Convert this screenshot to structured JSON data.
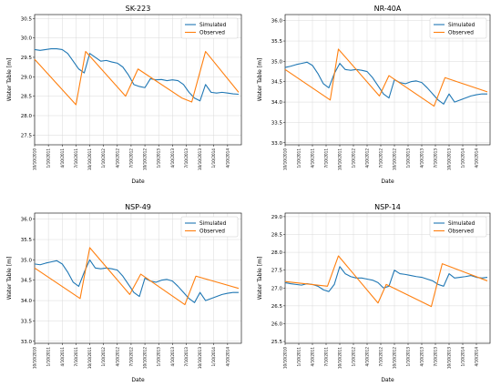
{
  "chart_data": [
    {
      "type": "line",
      "title": "SK-223",
      "xlabel": "Date",
      "ylabel": "Water Table [m]",
      "ylim": [
        27.25,
        30.6
      ],
      "yticks": [
        "27.5",
        "28.0",
        "28.5",
        "29.0",
        "29.5",
        "30.0",
        "30.5"
      ],
      "yticks_values": [
        27.5,
        28.0,
        28.5,
        29.0,
        29.5,
        30.0,
        30.5
      ],
      "xlim": [
        0,
        15
      ],
      "xticks": [
        "10/10/2010",
        "1/10/2011",
        "4/10/2011",
        "7/10/2011",
        "10/10/2011",
        "1/10/2012",
        "4/10/2012",
        "7/10/2012",
        "10/10/2012",
        "1/10/2013",
        "4/10/2013",
        "7/10/2013",
        "10/10/2013",
        "1/10/2014",
        "4/10/2014"
      ],
      "legend": "top-right",
      "grid": true,
      "series": [
        {
          "name": "Simulated",
          "color": "#1f77b4",
          "x": [
            0,
            0.4,
            0.8,
            1.2,
            1.6,
            2.0,
            2.4,
            2.8,
            3.2,
            3.6,
            4.0,
            4.4,
            4.8,
            5.2,
            5.6,
            6.0,
            6.4,
            6.8,
            7.2,
            7.6,
            8.0,
            8.4,
            8.8,
            9.2,
            9.6,
            10.0,
            10.4,
            10.8,
            11.2,
            11.6,
            12.0,
            12.4,
            12.8,
            13.2,
            13.6,
            14.0,
            14.4,
            14.8
          ],
          "y": [
            29.7,
            29.68,
            29.7,
            29.72,
            29.72,
            29.7,
            29.6,
            29.4,
            29.2,
            29.1,
            29.6,
            29.5,
            29.4,
            29.42,
            29.38,
            29.35,
            29.25,
            29.05,
            28.8,
            28.75,
            28.72,
            28.95,
            28.92,
            28.93,
            28.9,
            28.92,
            28.9,
            28.8,
            28.6,
            28.45,
            28.38,
            28.8,
            28.6,
            28.58,
            28.6,
            28.58,
            28.56,
            28.55
          ]
        },
        {
          "name": "Observed",
          "color": "#ff7f0e",
          "x": [
            0,
            3.0,
            3.7,
            6.6,
            7.5,
            10.7,
            11.4,
            12.4,
            14.8
          ],
          "y": [
            29.45,
            28.28,
            29.65,
            28.5,
            29.2,
            28.45,
            28.35,
            29.65,
            28.6
          ]
        }
      ]
    },
    {
      "type": "line",
      "title": "NR-40A",
      "xlabel": "Date",
      "ylabel": "Water Table [m]",
      "ylim": [
        32.95,
        36.15
      ],
      "yticks": [
        "33.0",
        "33.5",
        "34.0",
        "34.5",
        "35.0",
        "35.5",
        "36.0"
      ],
      "yticks_values": [
        33.0,
        33.5,
        34.0,
        34.5,
        35.0,
        35.5,
        36.0
      ],
      "xlim": [
        0,
        15
      ],
      "xticks": [
        "10/10/2010",
        "1/10/2011",
        "4/10/2011",
        "7/10/2011",
        "10/10/2011",
        "1/10/2012",
        "4/10/2012",
        "7/10/2012",
        "10/10/2012",
        "1/10/2013",
        "4/10/2013",
        "7/10/2013",
        "10/10/2013",
        "1/10/2014",
        "4/10/2014"
      ],
      "legend": "top-right",
      "grid": true,
      "series": [
        {
          "name": "Simulated",
          "color": "#1f77b4",
          "x": [
            0,
            0.4,
            0.8,
            1.2,
            1.6,
            2.0,
            2.4,
            2.8,
            3.2,
            3.6,
            4.0,
            4.4,
            4.8,
            5.2,
            5.6,
            6.0,
            6.4,
            6.8,
            7.2,
            7.6,
            8.0,
            8.4,
            8.8,
            9.2,
            9.6,
            10.0,
            10.4,
            10.8,
            11.2,
            11.6,
            12.0,
            12.4,
            12.8,
            13.2,
            13.6,
            14.0,
            14.4,
            14.8
          ],
          "y": [
            34.85,
            34.88,
            34.92,
            34.95,
            34.98,
            34.9,
            34.7,
            34.45,
            34.35,
            34.7,
            34.95,
            34.8,
            34.78,
            34.8,
            34.78,
            34.75,
            34.6,
            34.4,
            34.2,
            34.1,
            34.55,
            34.48,
            34.45,
            34.5,
            34.52,
            34.48,
            34.35,
            34.2,
            34.05,
            33.95,
            34.2,
            34.0,
            34.05,
            34.1,
            34.15,
            34.18,
            34.2,
            34.2
          ]
        },
        {
          "name": "Observed",
          "color": "#ff7f0e",
          "x": [
            0,
            3.3,
            3.9,
            6.9,
            7.6,
            10.9,
            11.7,
            14.8
          ],
          "y": [
            34.8,
            34.05,
            35.3,
            34.15,
            34.65,
            33.9,
            34.6,
            34.25
          ]
        }
      ]
    },
    {
      "type": "line",
      "title": "NSP-49",
      "xlabel": "Date",
      "ylabel": "Water Table [m]",
      "ylim": [
        32.95,
        36.15
      ],
      "yticks": [
        "33.0",
        "33.5",
        "34.0",
        "34.5",
        "35.0",
        "35.5",
        "36.0"
      ],
      "yticks_values": [
        33.0,
        33.5,
        34.0,
        34.5,
        35.0,
        35.5,
        36.0
      ],
      "xlim": [
        0,
        15
      ],
      "xticks": [
        "10/10/2010",
        "1/10/2011",
        "4/10/2011",
        "7/10/2011",
        "10/10/2011",
        "1/10/2012",
        "4/10/2012",
        "7/10/2012",
        "10/10/2012",
        "1/10/2013",
        "4/10/2013",
        "7/10/2013",
        "10/10/2013",
        "1/10/2014",
        "4/10/2014"
      ],
      "legend": "top-right",
      "grid": true,
      "series": [
        {
          "name": "Simulated",
          "color": "#1f77b4",
          "x": [
            0,
            0.4,
            0.8,
            1.2,
            1.6,
            2.0,
            2.4,
            2.8,
            3.2,
            3.6,
            4.0,
            4.4,
            4.8,
            5.2,
            5.6,
            6.0,
            6.4,
            6.8,
            7.2,
            7.6,
            8.0,
            8.4,
            8.8,
            9.2,
            9.6,
            10.0,
            10.4,
            10.8,
            11.2,
            11.6,
            12.0,
            12.4,
            12.8,
            13.2,
            13.6,
            14.0,
            14.4,
            14.8
          ],
          "y": [
            34.9,
            34.88,
            34.92,
            34.95,
            34.98,
            34.9,
            34.7,
            34.45,
            34.35,
            34.7,
            35.0,
            34.8,
            34.78,
            34.8,
            34.78,
            34.75,
            34.6,
            34.4,
            34.2,
            34.1,
            34.55,
            34.48,
            34.45,
            34.5,
            34.52,
            34.48,
            34.35,
            34.2,
            34.05,
            33.95,
            34.2,
            34.0,
            34.05,
            34.1,
            34.15,
            34.18,
            34.2,
            34.2
          ]
        },
        {
          "name": "Observed",
          "color": "#ff7f0e",
          "x": [
            0,
            3.3,
            4.0,
            6.9,
            7.7,
            10.9,
            11.7,
            14.8
          ],
          "y": [
            34.8,
            34.05,
            35.3,
            34.15,
            34.65,
            33.9,
            34.6,
            34.3
          ]
        }
      ]
    },
    {
      "type": "line",
      "title": "NSP-14",
      "xlabel": "Date",
      "ylabel": "Water Table [m]",
      "ylim": [
        25.45,
        29.1
      ],
      "yticks": [
        "25.5",
        "26.0",
        "26.5",
        "27.0",
        "27.5",
        "28.0",
        "28.5",
        "29.0"
      ],
      "yticks_values": [
        25.5,
        26.0,
        26.5,
        27.0,
        27.5,
        28.0,
        28.5,
        29.0
      ],
      "xlim": [
        0,
        15
      ],
      "xticks": [
        "10/10/2010",
        "1/10/2011",
        "4/10/2011",
        "7/10/2011",
        "10/10/2011",
        "1/10/2012",
        "4/10/2012",
        "7/10/2012",
        "10/10/2012",
        "1/10/2013",
        "4/10/2013",
        "7/10/2013",
        "10/10/2013",
        "1/10/2014",
        "4/10/2014"
      ],
      "legend": "top-right",
      "grid": true,
      "series": [
        {
          "name": "Simulated",
          "color": "#1f77b4",
          "x": [
            0,
            0.4,
            0.8,
            1.2,
            1.6,
            2.0,
            2.4,
            2.8,
            3.2,
            3.6,
            4.0,
            4.4,
            4.8,
            5.2,
            5.6,
            6.0,
            6.4,
            6.8,
            7.2,
            7.6,
            8.0,
            8.4,
            8.8,
            9.2,
            9.6,
            10.0,
            10.4,
            10.8,
            11.2,
            11.6,
            12.0,
            12.4,
            12.8,
            13.2,
            13.6,
            14.0,
            14.4,
            14.8
          ],
          "y": [
            27.15,
            27.12,
            27.1,
            27.08,
            27.12,
            27.1,
            27.05,
            26.95,
            26.9,
            27.1,
            27.6,
            27.4,
            27.32,
            27.28,
            27.28,
            27.25,
            27.22,
            27.15,
            27.0,
            27.05,
            27.5,
            27.4,
            27.38,
            27.35,
            27.32,
            27.3,
            27.25,
            27.2,
            27.1,
            27.05,
            27.4,
            27.28,
            27.3,
            27.32,
            27.35,
            27.3,
            27.28,
            27.3
          ]
        },
        {
          "name": "Observed",
          "color": "#ff7f0e",
          "x": [
            0,
            3.1,
            3.9,
            6.8,
            7.4,
            10.7,
            11.5,
            14.8
          ],
          "y": [
            27.18,
            27.05,
            27.9,
            26.58,
            27.1,
            26.48,
            27.68,
            27.2
          ]
        }
      ]
    }
  ]
}
